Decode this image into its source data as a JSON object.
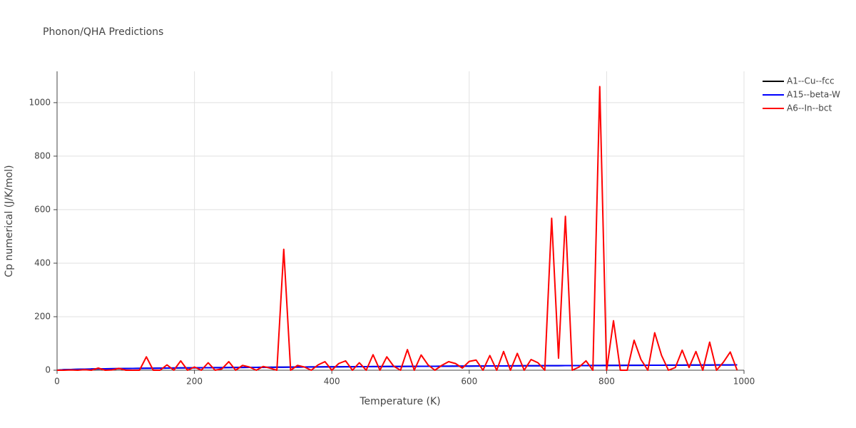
{
  "chart_data": {
    "type": "line",
    "title": "Phonon/QHA Predictions",
    "x_label": "Temperature (K)",
    "y_label": "Cp numerical (J/K/mol)",
    "xlim": [
      0,
      1000
    ],
    "ylim": [
      0,
      1117
    ],
    "xticks": [
      0,
      200,
      400,
      600,
      800,
      1000
    ],
    "yticks": [
      0,
      200,
      400,
      600,
      800,
      1000
    ],
    "grid": true,
    "legend": "right",
    "x": [
      0,
      10,
      20,
      30,
      40,
      50,
      60,
      70,
      80,
      90,
      100,
      110,
      120,
      130,
      140,
      150,
      160,
      170,
      180,
      190,
      200,
      210,
      220,
      230,
      240,
      250,
      260,
      270,
      280,
      290,
      300,
      310,
      320,
      330,
      340,
      350,
      360,
      370,
      380,
      390,
      400,
      410,
      420,
      430,
      440,
      450,
      460,
      470,
      480,
      490,
      500,
      510,
      520,
      530,
      540,
      550,
      560,
      570,
      580,
      590,
      600,
      610,
      620,
      630,
      640,
      650,
      660,
      670,
      680,
      690,
      700,
      710,
      720,
      730,
      740,
      750,
      760,
      770,
      780,
      790,
      800,
      810,
      820,
      830,
      840,
      850,
      860,
      870,
      880,
      890,
      900,
      910,
      920,
      930,
      940,
      950,
      960,
      970,
      980,
      990
    ],
    "series": [
      {
        "name": "A1--Cu--fcc",
        "color": "#000000",
        "values": [
          0,
          2,
          2.8,
          3.5,
          4,
          4.5,
          4.9,
          5.3,
          5.7,
          6,
          6.3,
          6.6,
          6.9,
          7.2,
          7.5,
          7.7,
          8,
          8.2,
          8.5,
          8.7,
          8.9,
          9.2,
          9.4,
          9.6,
          9.8,
          10,
          10.2,
          10.4,
          10.6,
          10.8,
          11,
          11.1,
          11.3,
          11.5,
          11.7,
          11.8,
          12,
          12.2,
          12.3,
          12.5,
          12.6,
          12.8,
          13,
          13.1,
          13.3,
          13.4,
          13.6,
          13.7,
          13.9,
          14,
          14.1,
          14.3,
          14.4,
          14.6,
          14.7,
          14.8,
          15,
          15.1,
          15.2,
          15.4,
          15.5,
          15.6,
          15.7,
          15.9,
          16,
          16.1,
          16.2,
          16.4,
          16.5,
          16.6,
          16.7,
          16.9,
          17,
          17.1,
          17.2,
          17.3,
          17.4,
          17.5,
          17.7,
          17.8,
          17.9,
          18,
          18.1,
          18.2,
          18.3,
          18.4,
          18.5,
          18.6,
          18.8,
          18.9,
          19,
          19.1,
          19.2,
          19.3,
          19.4,
          19.5,
          19.6,
          19.7,
          19.8,
          19.9
        ]
      },
      {
        "name": "A15--beta-W",
        "color": "#0000ff",
        "values": [
          0,
          2,
          2.8,
          3.5,
          4,
          4.5,
          4.9,
          5.3,
          5.7,
          6,
          6.3,
          6.6,
          6.9,
          7.2,
          7.5,
          7.7,
          8,
          8.2,
          8.5,
          8.7,
          8.9,
          9.2,
          9.4,
          9.6,
          9.8,
          10,
          10.2,
          10.4,
          10.6,
          10.8,
          11,
          11.1,
          11.3,
          11.5,
          11.7,
          11.8,
          12,
          12.2,
          12.3,
          12.5,
          12.6,
          12.8,
          13,
          13.1,
          13.3,
          13.4,
          13.6,
          13.7,
          13.9,
          14,
          14.1,
          14.3,
          14.4,
          14.6,
          14.7,
          14.8,
          15,
          15.1,
          15.2,
          15.4,
          15.5,
          15.6,
          15.7,
          15.9,
          16,
          16.1,
          16.2,
          16.4,
          16.5,
          16.6,
          16.7,
          16.9,
          17,
          17.1,
          17.2,
          17.3,
          17.4,
          17.5,
          17.7,
          17.8,
          17.9,
          18,
          18.1,
          18.2,
          18.3,
          18.4,
          18.5,
          18.6,
          18.8,
          18.9,
          19,
          19.1,
          19.2,
          19.3,
          19.4,
          19.5,
          19.6,
          19.7,
          19.8,
          19.9
        ]
      },
      {
        "name": "A6--In--bct",
        "color": "#ff0000",
        "values": [
          0,
          0,
          1,
          0,
          2,
          0,
          8,
          0,
          1,
          7,
          0,
          0,
          0,
          50,
          0,
          0,
          20,
          0,
          35,
          0,
          12,
          0,
          28,
          0,
          5,
          32,
          0,
          18,
          12,
          0,
          14,
          8,
          0,
          452,
          0,
          18,
          12,
          0,
          20,
          32,
          0,
          25,
          35,
          0,
          28,
          0,
          58,
          0,
          50,
          15,
          0,
          77,
          0,
          57,
          20,
          0,
          18,
          32,
          25,
          8,
          33,
          38,
          0,
          55,
          0,
          70,
          0,
          63,
          0,
          40,
          28,
          0,
          568,
          45,
          575,
          0,
          12,
          35,
          0,
          1060,
          0,
          185,
          0,
          0,
          112,
          40,
          0,
          140,
          55,
          0,
          10,
          75,
          10,
          70,
          0,
          105,
          0,
          30,
          68,
          0
        ]
      }
    ]
  }
}
